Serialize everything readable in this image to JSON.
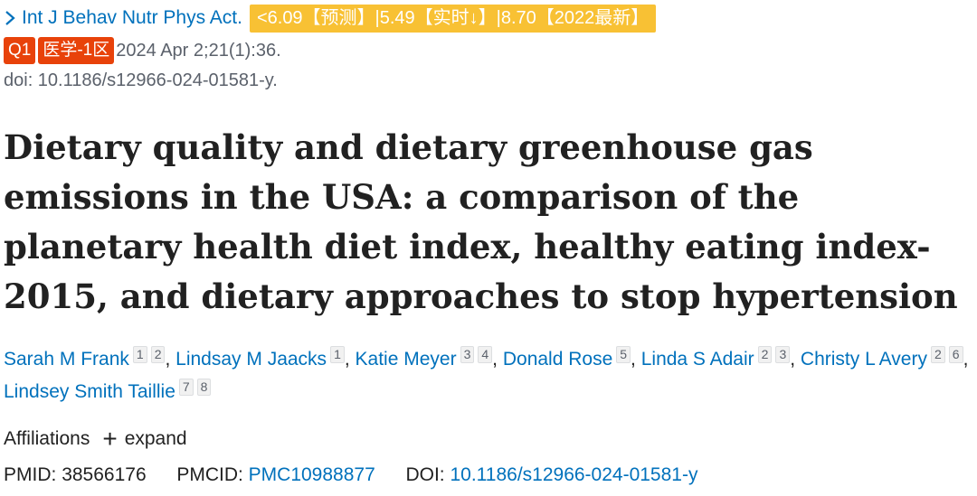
{
  "journal": {
    "name": "Int J Behav Nutr Phys Act.",
    "impact_badge": "<6.09【预测】|5.49【实时↓】|8.70【2022最新】",
    "quartile": "Q1",
    "zone": "医学-1区",
    "citation": "2024 Apr 2;21(1):36.",
    "doi_line": "doi: 10.1186/s12966-024-01581-y."
  },
  "article": {
    "title": "Dietary quality and dietary greenhouse gas emissions in the USA: a comparison of the planetary health diet index, healthy eating index-2015, and dietary approaches to stop hypertension"
  },
  "authors": [
    {
      "name": "Sarah M Frank",
      "affiliations": [
        "1",
        "2"
      ]
    },
    {
      "name": "Lindsay M Jaacks",
      "affiliations": [
        "1"
      ]
    },
    {
      "name": "Katie Meyer",
      "affiliations": [
        "3",
        "4"
      ]
    },
    {
      "name": "Donald Rose",
      "affiliations": [
        "5"
      ]
    },
    {
      "name": "Linda S Adair",
      "affiliations": [
        "2",
        "3"
      ]
    },
    {
      "name": "Christy L Avery",
      "affiliations": [
        "2",
        "6"
      ]
    },
    {
      "name": "Lindsey Smith Taillie",
      "affiliations": [
        "7",
        "8"
      ]
    }
  ],
  "affiliations_section": {
    "label": "Affiliations",
    "expand_label": "expand"
  },
  "identifiers": {
    "pmid_label": "PMID:",
    "pmid": "38566176",
    "pmcid_label": "PMCID:",
    "pmcid": "PMC10988877",
    "doi_label": "DOI:",
    "doi": "10.1186/s12966-024-01581-y"
  },
  "icons": {
    "journal_toggle": "chevron-right-icon",
    "expand": "plus-icon"
  },
  "colors": {
    "link": "#0071bc",
    "impact_badge_bg": "#f8c134",
    "quartile_badge_bg": "#e8420a",
    "text": "#212121",
    "muted": "#5b616b"
  }
}
